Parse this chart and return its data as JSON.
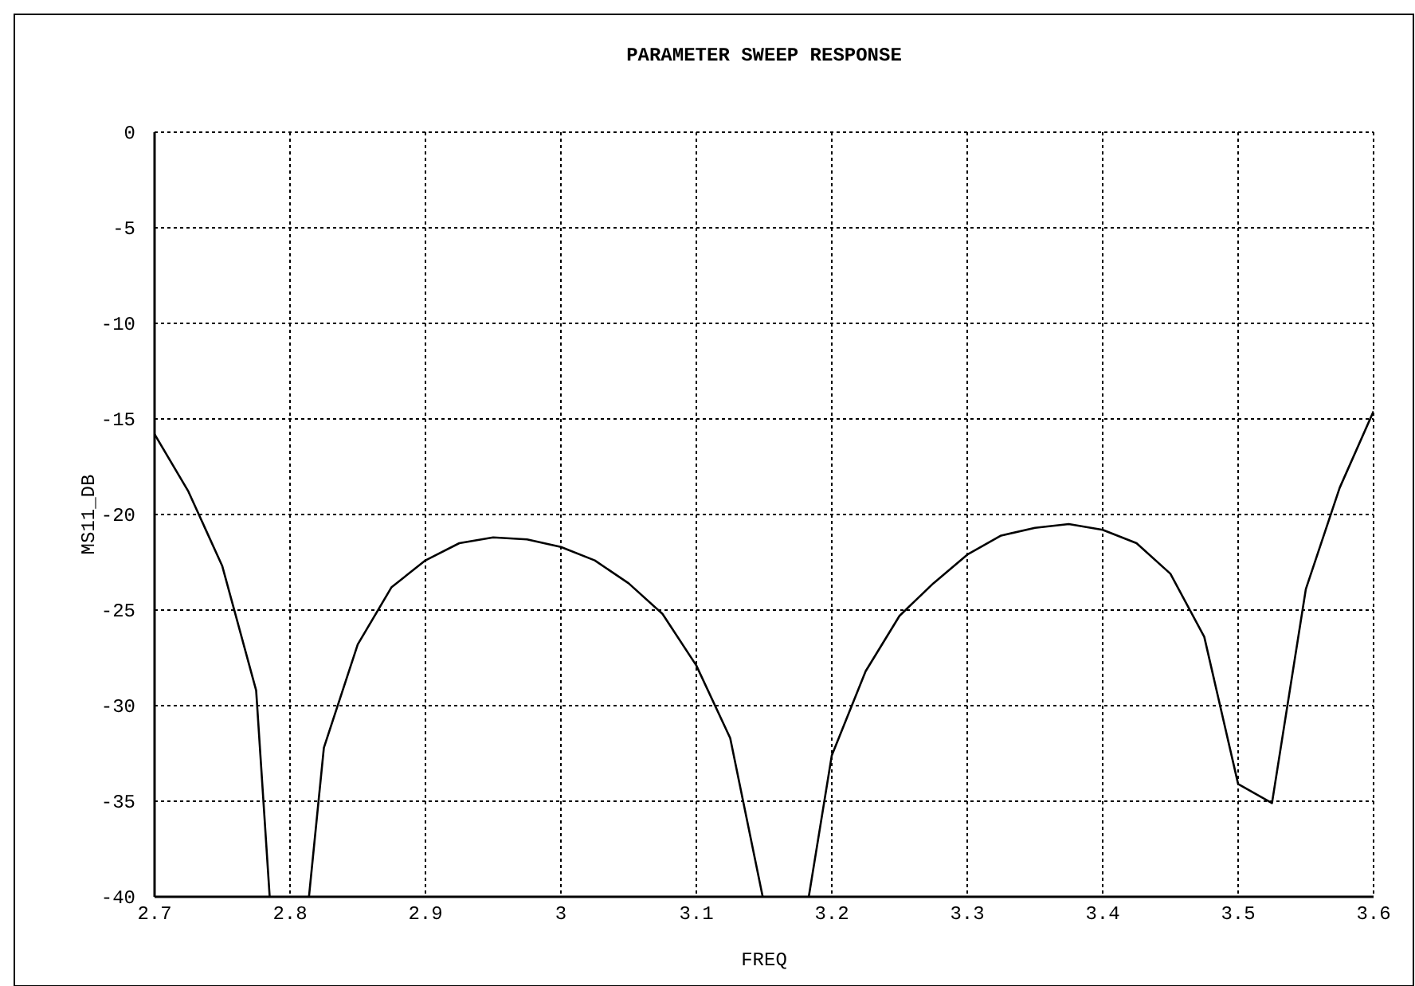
{
  "chart_data": {
    "type": "line",
    "title": "PARAMETER SWEEP RESPONSE",
    "xlabel": "FREQ",
    "ylabel": "MS11_DB",
    "xlim": [
      2.7,
      3.6
    ],
    "xticks": [
      2.7,
      2.8,
      2.9,
      3,
      3.1,
      3.2,
      3.3,
      3.4,
      3.5,
      3.6
    ],
    "ylim": [
      -40,
      0
    ],
    "yticks": [
      -40,
      -35,
      -30,
      -25,
      -20,
      -15,
      -10,
      -5,
      0
    ],
    "grid": true,
    "line_style": "solid",
    "marker": "none",
    "series": [
      {
        "color": "#000000",
        "x": [
          2.7,
          2.725,
          2.75,
          2.775,
          2.785,
          2.8,
          2.814,
          2.825,
          2.85,
          2.875,
          2.9,
          2.925,
          2.95,
          2.975,
          3.0,
          3.025,
          3.05,
          3.075,
          3.1,
          3.125,
          3.149,
          3.165,
          3.183,
          3.2,
          3.225,
          3.25,
          3.275,
          3.3,
          3.325,
          3.35,
          3.375,
          3.4,
          3.425,
          3.45,
          3.475,
          3.5,
          3.525,
          3.55,
          3.575,
          3.6
        ],
        "values": [
          -15.8,
          -18.8,
          -22.7,
          -29.2,
          -40,
          null,
          -40,
          -32.2,
          -26.8,
          -23.8,
          -22.4,
          -21.5,
          -21.2,
          -21.3,
          -21.7,
          -22.4,
          -23.6,
          -25.2,
          -27.9,
          -31.7,
          -40,
          null,
          -40,
          -32.6,
          -28.2,
          -25.3,
          -23.6,
          -22.1,
          -21.1,
          -20.7,
          -20.5,
          -20.8,
          -21.5,
          -23.1,
          -26.4,
          -34.1,
          -35.1,
          -23.9,
          -18.6,
          -14.6
        ]
      }
    ]
  }
}
